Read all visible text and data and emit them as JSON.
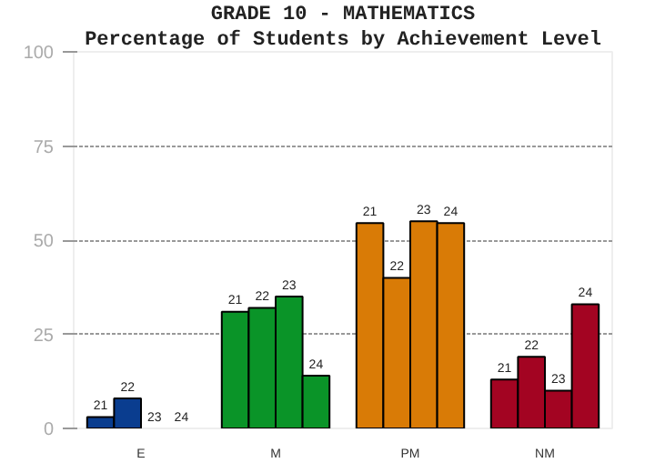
{
  "chart_data": {
    "type": "bar",
    "title": "GRADE 10 - MATHEMATICS",
    "subtitle": "Percentage of Students by Achievement Level",
    "categories": [
      "E",
      "M",
      "PM",
      "NM"
    ],
    "series": [
      {
        "name": "21",
        "colors": [
          "#0a3d8f",
          "#0a9428",
          "#d97b06",
          "#a30422"
        ],
        "values": [
          3,
          31,
          54.5,
          13
        ]
      },
      {
        "name": "22",
        "colors": [
          "#0a3d8f",
          "#0a9428",
          "#d97b06",
          "#a30422"
        ],
        "values": [
          8,
          32,
          40,
          19
        ]
      },
      {
        "name": "23",
        "colors": [
          "#0a3d8f",
          "#0a9428",
          "#d97b06",
          "#a30422"
        ],
        "values": [
          0,
          35,
          55,
          10
        ]
      },
      {
        "name": "24",
        "colors": [
          "#0a3d8f",
          "#0a9428",
          "#d97b06",
          "#a30422"
        ],
        "values": [
          0,
          14,
          54.5,
          33
        ]
      }
    ],
    "ylim": [
      0,
      100
    ],
    "yticks": [
      0,
      25,
      50,
      75,
      100
    ],
    "grid": "y"
  }
}
